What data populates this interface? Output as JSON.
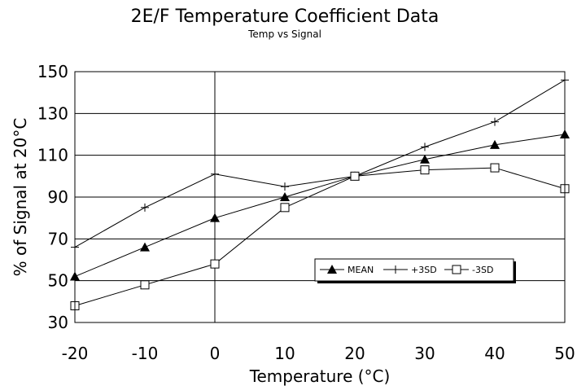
{
  "chart_data": {
    "type": "line",
    "title": "2E/F Temperature Coefficient Data",
    "subtitle": "Temp vs Signal",
    "xlabel": "Temperature (°C)",
    "ylabel": "% of Signal at 20°C",
    "xlim": [
      -20,
      50
    ],
    "ylim": [
      30,
      150
    ],
    "xticks": [
      -20,
      -10,
      0,
      10,
      20,
      30,
      40,
      50
    ],
    "yticks": [
      30,
      50,
      70,
      90,
      110,
      130,
      150
    ],
    "grid": "horizontal plus vertical line at 0",
    "legend_position": "lower-right",
    "x": [
      -20,
      -10,
      0,
      10,
      20,
      30,
      40,
      50
    ],
    "series": [
      {
        "name": "MEAN",
        "marker": "filled-triangle",
        "values": [
          52,
          66,
          80,
          90,
          100,
          108,
          115,
          120
        ]
      },
      {
        "name": "+3SD",
        "marker": "plus",
        "values": [
          66,
          85,
          101,
          95,
          100,
          114,
          126,
          146
        ]
      },
      {
        "name": "-3SD",
        "marker": "open-square",
        "values": [
          38,
          48,
          58,
          85,
          100,
          103,
          104,
          94
        ]
      }
    ]
  }
}
